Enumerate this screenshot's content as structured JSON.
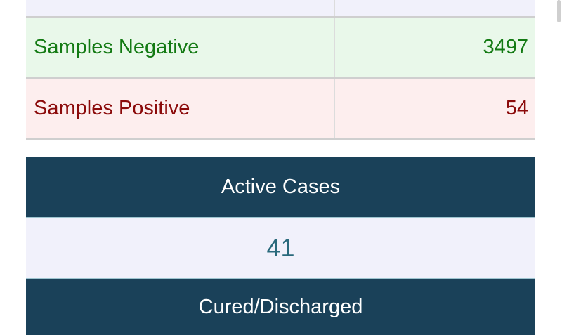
{
  "table": {
    "rows": [
      {
        "label": "Samples Negative",
        "value": "3497",
        "color": "#137a13"
      },
      {
        "label": "Samples Positive",
        "value": "54",
        "color": "#8b0a0a"
      }
    ]
  },
  "active_cases": {
    "title": "Active Cases",
    "value": "41"
  },
  "cured": {
    "title": "Cured/Discharged"
  }
}
